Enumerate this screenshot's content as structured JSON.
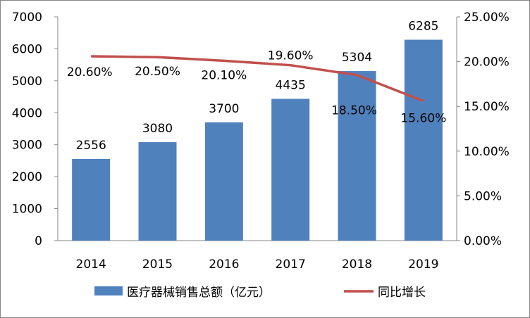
{
  "chart_data": {
    "type": "bar+line",
    "categories": [
      "2014",
      "2015",
      "2016",
      "2017",
      "2018",
      "2019"
    ],
    "series": [
      {
        "name": "医疗器械销售总额（亿元）",
        "type": "bar",
        "axis": "left",
        "values": [
          2556,
          3080,
          3700,
          4435,
          5304,
          6285
        ],
        "labels": [
          "2556",
          "3080",
          "3700",
          "4435",
          "5304",
          "6285"
        ],
        "color": "#4f81bd"
      },
      {
        "name": "同比增长",
        "type": "line",
        "axis": "right",
        "values": [
          20.6,
          20.5,
          20.1,
          19.6,
          18.5,
          15.6
        ],
        "labels": [
          "20.60%",
          "20.50%",
          "20.10%",
          "19.60%",
          "18.50%",
          "15.60%"
        ],
        "color": "#c0504d"
      }
    ],
    "y_left": {
      "lim": [
        0,
        7000
      ],
      "ticks": [
        "0",
        "1000",
        "2000",
        "3000",
        "4000",
        "5000",
        "6000",
        "7000"
      ]
    },
    "y_right": {
      "lim": [
        0,
        25
      ],
      "ticks": [
        "0.00%",
        "5.00%",
        "10.00%",
        "15.00%",
        "20.00%",
        "25.00%"
      ]
    },
    "grid": false,
    "legend": "bottom"
  }
}
